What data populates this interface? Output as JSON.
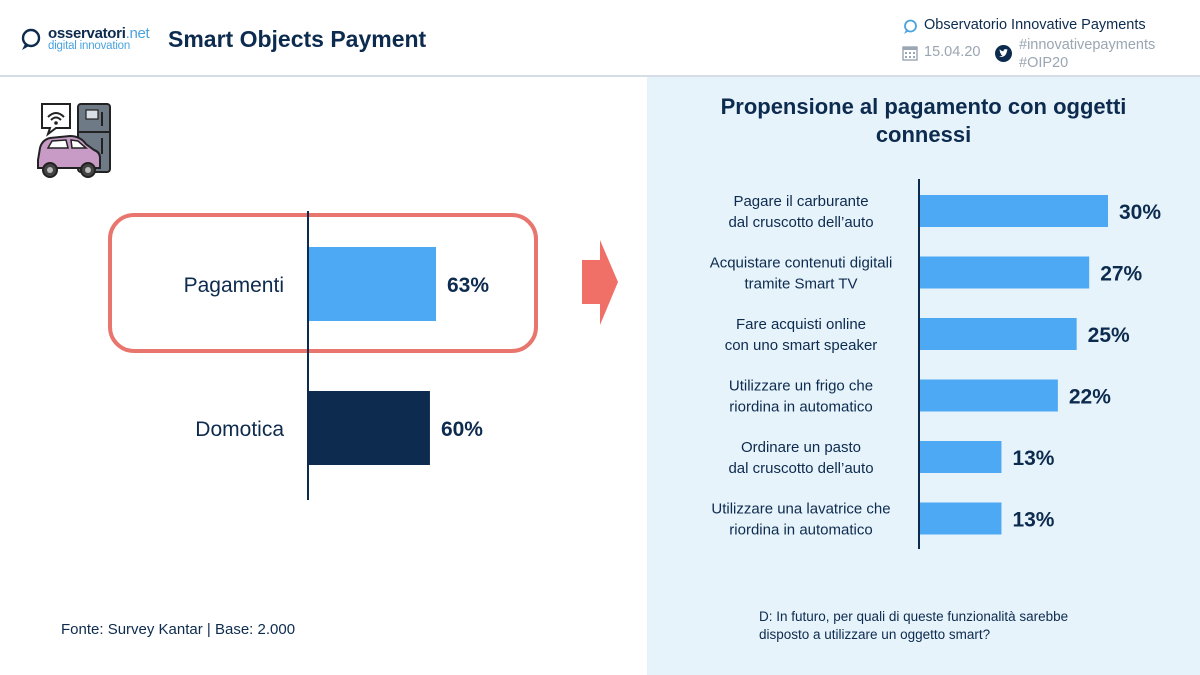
{
  "header": {
    "logo": {
      "line1_main": "osservatori",
      "line1_suffix": ".net",
      "line2": "digital innovation"
    },
    "title": "Smart Objects Payment",
    "organization": "Observatorio Innovative Payments",
    "date": "15.04.20",
    "hashtags": [
      "#innovativepayments",
      "#OIP20"
    ],
    "icons": {
      "org": "speech-bubble-icon",
      "date": "calendar-icon",
      "social": "twitter-icon"
    }
  },
  "left": {
    "illustration": "smart-devices-illustration",
    "highlight_color": "#e8766e",
    "arrow_color": "#f07067",
    "source": "Fonte: Survey Kantar | Base: 2.000"
  },
  "right": {
    "title_lines": [
      "Propensione al pagamento con oggetti",
      "connessi"
    ],
    "question_lines": [
      "D: In futuro, per quali di queste funzionalità sarebbe",
      "disposto a utilizzare un oggetto smart?"
    ]
  },
  "chart_data": [
    {
      "type": "bar",
      "orientation": "horizontal",
      "categories": [
        "Pagamenti",
        "Domotica"
      ],
      "values": [
        63,
        60
      ],
      "value_labels": [
        "63%",
        "60%"
      ],
      "colors": [
        "#4da9f4",
        "#0d2b4e"
      ],
      "highlighted": "Pagamenti"
    },
    {
      "type": "bar",
      "orientation": "horizontal",
      "title": "Propensione al pagamento con oggetti connessi",
      "categories": [
        [
          "Pagare il carburante",
          "dal cruscotto dell’auto"
        ],
        [
          "Acquistare contenuti digitali",
          "tramite Smart TV"
        ],
        [
          "Fare acquisti online",
          "con uno smart speaker"
        ],
        [
          "Utilizzare un frigo che",
          "riordina in automatico"
        ],
        [
          "Ordinare un pasto",
          "dal cruscotto dell’auto"
        ],
        [
          "Utilizzare una lavatrice che",
          "riordina in automatico"
        ]
      ],
      "values": [
        30,
        27,
        25,
        22,
        13,
        13
      ],
      "value_labels": [
        "30%",
        "27%",
        "25%",
        "22%",
        "13%",
        "13%"
      ],
      "color": "#4da9f4"
    }
  ]
}
